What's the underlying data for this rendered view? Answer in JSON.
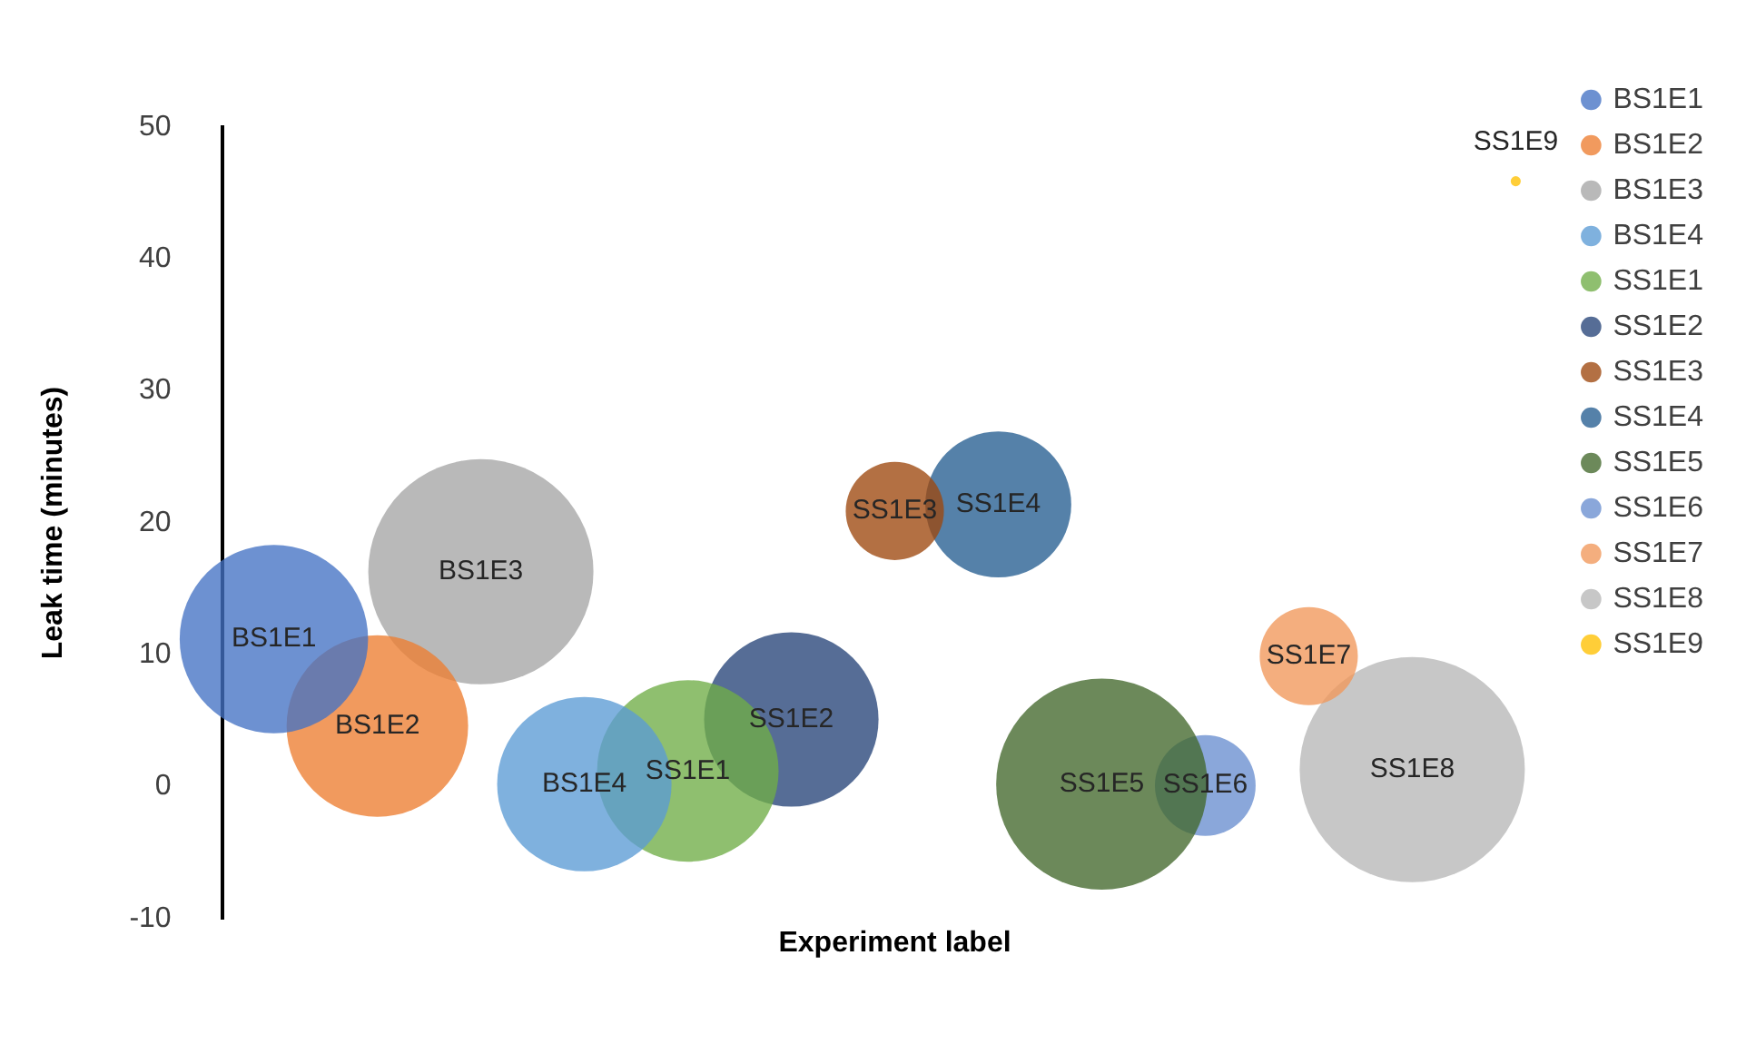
{
  "chart_data": {
    "type": "bubble",
    "ylabel": "Leak time (minutes)",
    "xlabel": "Experiment label",
    "categories": [
      "BS1E1",
      "BS1E2",
      "BS1E3",
      "BS1E4",
      "SS1E1",
      "SS1E2",
      "SS1E3",
      "SS1E4",
      "SS1E5",
      "SS1E6",
      "SS1E7",
      "SS1E8",
      "SS1E9"
    ],
    "ylim": [
      -10,
      50
    ],
    "yticks": [
      -10,
      0,
      10,
      20,
      30,
      40,
      50
    ],
    "grid": false,
    "legend": "right",
    "tick_labels": "y",
    "marker": "circle",
    "series": [
      {
        "name": "BS1E1",
        "color": "#4472c4",
        "values": [
          11.2,
          null,
          null,
          null,
          null,
          null,
          null,
          null,
          null,
          null,
          null,
          null,
          null
        ],
        "sizes": [
          0.7,
          null,
          null,
          null,
          null,
          null,
          null,
          null,
          null,
          null,
          null,
          null,
          null
        ]
      },
      {
        "name": "BS1E2",
        "color": "#ed7d31",
        "values": [
          null,
          4.6,
          null,
          null,
          null,
          null,
          null,
          null,
          null,
          null,
          null,
          null,
          null
        ],
        "sizes": [
          null,
          0.65,
          null,
          null,
          null,
          null,
          null,
          null,
          null,
          null,
          null,
          null,
          null
        ]
      },
      {
        "name": "BS1E3",
        "color": "#a5a5a5",
        "values": [
          null,
          null,
          16.3,
          null,
          null,
          null,
          null,
          null,
          null,
          null,
          null,
          null,
          null
        ],
        "sizes": [
          null,
          null,
          1,
          null,
          null,
          null,
          null,
          null,
          null,
          null,
          null,
          null,
          null
        ]
      },
      {
        "name": "BS1E4",
        "color": "#5b9bd5",
        "values": [
          null,
          null,
          null,
          0.2,
          null,
          null,
          null,
          null,
          null,
          null,
          null,
          null,
          null
        ],
        "sizes": [
          null,
          null,
          null,
          0.6,
          null,
          null,
          null,
          null,
          null,
          null,
          null,
          null,
          null
        ]
      },
      {
        "name": "SS1E1",
        "color": "#70ad47",
        "values": [
          null,
          null,
          null,
          null,
          1.2,
          null,
          null,
          null,
          null,
          null,
          null,
          null,
          null
        ],
        "sizes": [
          null,
          null,
          null,
          null,
          0.65,
          null,
          null,
          null,
          null,
          null,
          null,
          null,
          null
        ]
      },
      {
        "name": "SS1E2",
        "color": "#264478",
        "values": [
          null,
          null,
          null,
          null,
          null,
          5.1,
          null,
          null,
          null,
          null,
          null,
          null,
          null
        ],
        "sizes": [
          null,
          null,
          null,
          null,
          null,
          0.6,
          null,
          null,
          null,
          null,
          null,
          null,
          null
        ]
      },
      {
        "name": "SS1E3",
        "color": "#9e480e",
        "values": [
          null,
          null,
          null,
          null,
          null,
          null,
          20.9,
          null,
          null,
          null,
          null,
          null,
          null
        ],
        "sizes": [
          null,
          null,
          null,
          null,
          null,
          null,
          0.19,
          null,
          null,
          null,
          null,
          null,
          null
        ]
      },
      {
        "name": "SS1E4",
        "color": "#255e91",
        "values": [
          null,
          null,
          null,
          null,
          null,
          null,
          null,
          21.4,
          null,
          null,
          null,
          null,
          null
        ],
        "sizes": [
          null,
          null,
          null,
          null,
          null,
          null,
          null,
          0.42,
          null,
          null,
          null,
          null,
          null
        ]
      },
      {
        "name": "SS1E5",
        "color": "#43682b",
        "values": [
          null,
          null,
          null,
          null,
          null,
          null,
          null,
          null,
          0.2,
          null,
          null,
          null,
          null
        ],
        "sizes": [
          null,
          null,
          null,
          null,
          null,
          null,
          null,
          null,
          0.88,
          null,
          null,
          null,
          null
        ]
      },
      {
        "name": "SS1E6",
        "color": "#698ed0",
        "values": [
          null,
          null,
          null,
          null,
          null,
          null,
          null,
          null,
          null,
          0.1,
          null,
          null,
          null
        ],
        "sizes": [
          null,
          null,
          null,
          null,
          null,
          null,
          null,
          null,
          null,
          0.2,
          null,
          null,
          null
        ]
      },
      {
        "name": "SS1E7",
        "color": "#f1975a",
        "values": [
          null,
          null,
          null,
          null,
          null,
          null,
          null,
          null,
          null,
          null,
          9.9,
          null,
          null
        ],
        "sizes": [
          null,
          null,
          null,
          null,
          null,
          null,
          null,
          null,
          null,
          null,
          0.19,
          null,
          null
        ]
      },
      {
        "name": "SS1E8",
        "color": "#b7b7b7",
        "values": [
          null,
          null,
          null,
          null,
          null,
          null,
          null,
          null,
          null,
          null,
          null,
          1.3,
          null
        ],
        "sizes": [
          null,
          null,
          null,
          null,
          null,
          null,
          null,
          null,
          null,
          null,
          null,
          1,
          null
        ]
      },
      {
        "name": "SS1E9",
        "color": "#ffc000",
        "values": [
          null,
          null,
          null,
          null,
          null,
          null,
          null,
          null,
          null,
          null,
          null,
          null,
          45.9
        ],
        "sizes": [
          null,
          null,
          null,
          null,
          null,
          null,
          null,
          null,
          null,
          null,
          null,
          null,
          0.002
        ]
      }
    ]
  }
}
